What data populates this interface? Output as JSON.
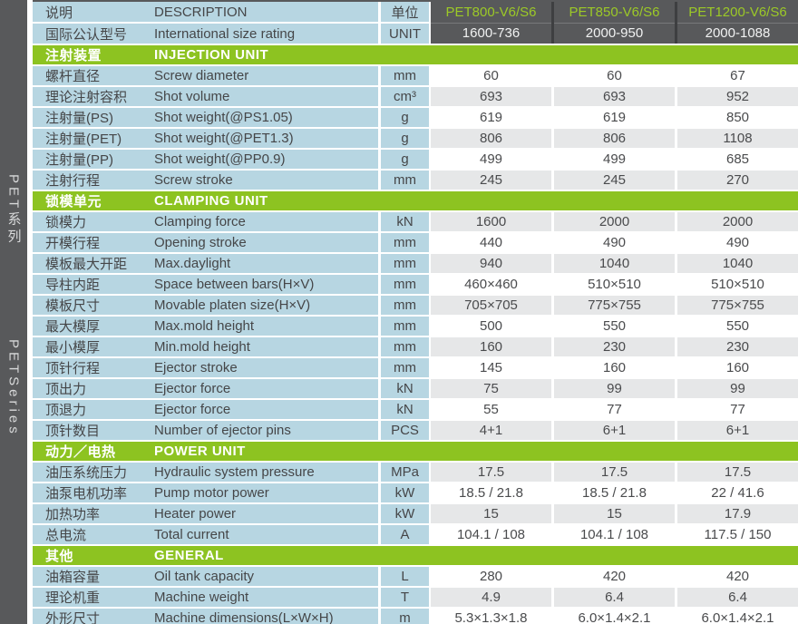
{
  "colors": {
    "accent_green": "#8dc321",
    "model_text_green": "#9cc927",
    "header_dark": "#58595b",
    "cell_blue": "#b7d6e2",
    "cell_gray": "#e6e7e8",
    "text_dark": "#454648"
  },
  "sidebar": {
    "series_cn": "PET系列",
    "series_en": "PETSeries"
  },
  "header": {
    "desc_cn": "说明",
    "desc_en": "DESCRIPTION",
    "rating_cn": "国际公认型号",
    "rating_en": "International size rating",
    "unit_cn": "单位",
    "unit_en": "UNIT",
    "models": [
      {
        "name": "PET800-V6/S6",
        "rating": "1600-736"
      },
      {
        "name": "PET850-V6/S6",
        "rating": "2000-950"
      },
      {
        "name": "PET1200-V6/S6",
        "rating": "2000-1088"
      }
    ]
  },
  "sections": [
    {
      "title_cn": "注射装置",
      "title_en": "INJECTION UNIT",
      "rows": [
        {
          "cn": "螺杆直径",
          "en": "Screw diameter",
          "unit": "mm",
          "values": [
            "60",
            "60",
            "67"
          ]
        },
        {
          "cn": "理论注射容积",
          "en": "Shot volume",
          "unit": "cm³",
          "values": [
            "693",
            "693",
            "952"
          ]
        },
        {
          "cn": "注射量(PS)",
          "en": "Shot weight(@PS1.05)",
          "unit": "g",
          "values": [
            "619",
            "619",
            "850"
          ]
        },
        {
          "cn": "注射量(PET)",
          "en": "Shot weight(@PET1.3)",
          "unit": "g",
          "values": [
            "806",
            "806",
            "1108"
          ]
        },
        {
          "cn": "注射量(PP)",
          "en": "Shot weight(@PP0.9)",
          "unit": "g",
          "values": [
            "499",
            "499",
            "685"
          ]
        },
        {
          "cn": "注射行程",
          "en": "Screw stroke",
          "unit": "mm",
          "values": [
            "245",
            "245",
            "270"
          ]
        }
      ]
    },
    {
      "title_cn": "锁模单元",
      "title_en": "CLAMPING UNIT",
      "rows": [
        {
          "cn": "锁模力",
          "en": "Clamping force",
          "unit": "kN",
          "values": [
            "1600",
            "2000",
            "2000"
          ]
        },
        {
          "cn": "开模行程",
          "en": "Opening stroke",
          "unit": "mm",
          "values": [
            "440",
            "490",
            "490"
          ]
        },
        {
          "cn": "模板最大开距",
          "en": "Max.daylight",
          "unit": "mm",
          "values": [
            "940",
            "1040",
            "1040"
          ]
        },
        {
          "cn": "导柱内距",
          "en": "Space between bars(H×V)",
          "unit": "mm",
          "values": [
            "460×460",
            "510×510",
            "510×510"
          ]
        },
        {
          "cn": "模板尺寸",
          "en": "Movable platen size(H×V)",
          "unit": "mm",
          "values": [
            "705×705",
            "775×755",
            "775×755"
          ]
        },
        {
          "cn": "最大模厚",
          "en": "Max.mold height",
          "unit": "mm",
          "values": [
            "500",
            "550",
            "550"
          ]
        },
        {
          "cn": "最小模厚",
          "en": "Min.mold height",
          "unit": "mm",
          "values": [
            "160",
            "230",
            "230"
          ]
        },
        {
          "cn": "顶针行程",
          "en": "Ejector stroke",
          "unit": "mm",
          "values": [
            "145",
            "160",
            "160"
          ]
        },
        {
          "cn": "顶出力",
          "en": "Ejector force",
          "unit": "kN",
          "values": [
            "75",
            "99",
            "99"
          ]
        },
        {
          "cn": "顶退力",
          "en": "Ejector force",
          "unit": "kN",
          "values": [
            "55",
            "77",
            "77"
          ]
        },
        {
          "cn": "顶针数目",
          "en": "Number of ejector pins",
          "unit": "PCS",
          "values": [
            "4+1",
            "6+1",
            "6+1"
          ]
        }
      ]
    },
    {
      "title_cn": "动力／电热",
      "title_en": "POWER UNIT",
      "rows": [
        {
          "cn": "油压系统压力",
          "en": "Hydraulic system pressure",
          "unit": "MPa",
          "values": [
            "17.5",
            "17.5",
            "17.5"
          ]
        },
        {
          "cn": "油泵电机功率",
          "en": "Pump motor power",
          "unit": "kW",
          "values": [
            "18.5 / 21.8",
            "18.5 / 21.8",
            "22 / 41.6"
          ]
        },
        {
          "cn": "加热功率",
          "en": "Heater power",
          "unit": "kW",
          "values": [
            "15",
            "15",
            "17.9"
          ]
        },
        {
          "cn": "总电流",
          "en": "Total current",
          "unit": "A",
          "values": [
            "104.1 / 108",
            "104.1 / 108",
            "117.5 / 150"
          ]
        }
      ]
    },
    {
      "title_cn": "其他",
      "title_en": "GENERAL",
      "rows": [
        {
          "cn": "油箱容量",
          "en": "Oil tank capacity",
          "unit": "L",
          "values": [
            "280",
            "420",
            "420"
          ]
        },
        {
          "cn": "理论机重",
          "en": "Machine weight",
          "unit": "T",
          "values": [
            "4.9",
            "6.4",
            "6.4"
          ]
        },
        {
          "cn": "外形尺寸",
          "en": "Machine dimensions(L×W×H)",
          "unit": "m",
          "values": [
            "5.3×1.3×1.8",
            "6.0×1.4×2.1",
            "6.0×1.4×2.1"
          ]
        }
      ]
    }
  ]
}
